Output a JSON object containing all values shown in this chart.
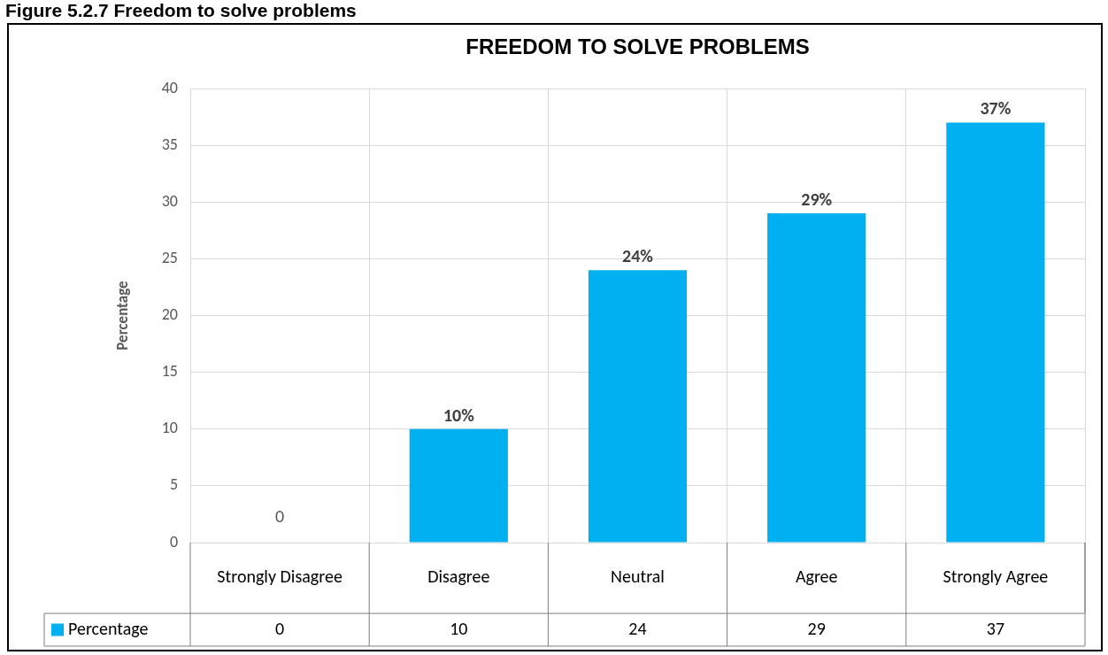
{
  "chart_data": {
    "type": "bar",
    "title": "FREEDOM TO SOLVE PROBLEMS",
    "ylabel": "Percentage",
    "annotations": [
      "Figure 5.2.7 Freedom to solve problems",
      {
        "text": "0",
        "x": "Strongly Disagree",
        "y": 0
      },
      {
        "text": "10%",
        "x": "Disagree",
        "y": 10
      },
      {
        "text": "24%",
        "x": "Neutral",
        "y": 24
      },
      {
        "text": "29%",
        "x": "Agree",
        "y": 29
      },
      {
        "text": "37%",
        "x": "Strongly Agree",
        "y": 37
      }
    ],
    "categories": [
      "Strongly Disagree",
      "Disagree",
      "Neutral",
      "Agree",
      "Strongly Agree"
    ],
    "series": [
      {
        "name": "Percentage",
        "color": "#00b0f0",
        "values": [
          0,
          10,
          24,
          29,
          37
        ]
      }
    ],
    "ylim": [
      0,
      40
    ],
    "yticks": [
      0,
      5,
      10,
      15,
      20,
      25,
      30,
      35,
      40
    ],
    "grid": true,
    "legend": "bottom",
    "data_labels": true
  }
}
